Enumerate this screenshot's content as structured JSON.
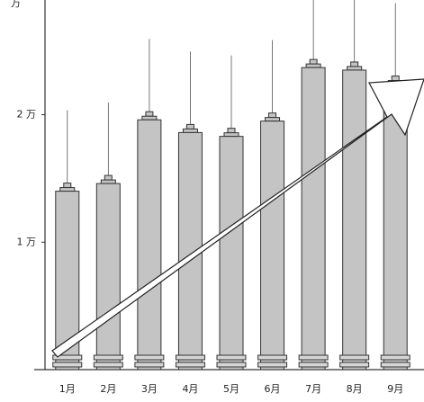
{
  "chart_data": {
    "type": "bar",
    "y_label": "万",
    "categories": [
      "1月",
      "2月",
      "3月",
      "4月",
      "5月",
      "6月",
      "7月",
      "8月",
      "9月"
    ],
    "values": [
      14000,
      14600,
      19600,
      18600,
      18300,
      19500,
      23700,
      23500,
      22400
    ],
    "color": "#c4c4c4",
    "ylim": [
      0,
      29000
    ],
    "yticks": [
      {
        "value": 10000,
        "label": "1 万"
      },
      {
        "value": 20000,
        "label": "2 万"
      }
    ],
    "grid": false
  }
}
